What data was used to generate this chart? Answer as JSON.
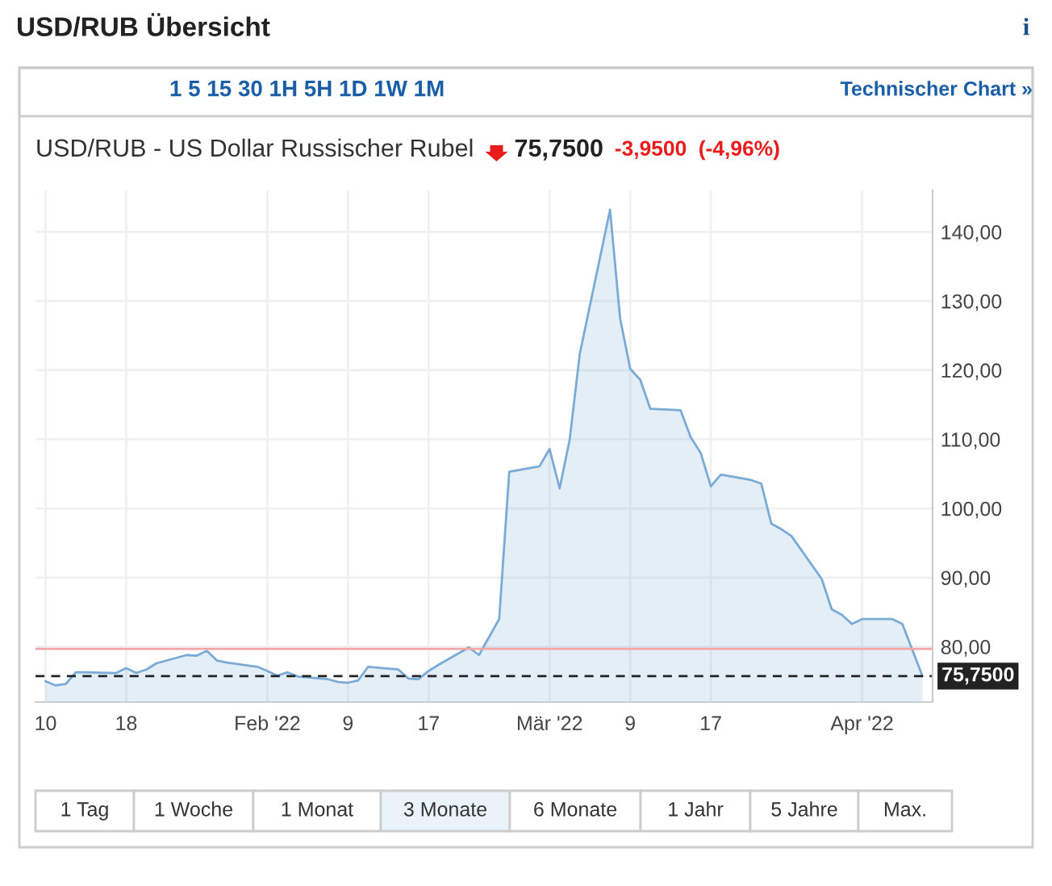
{
  "chart_data": {
    "type": "area",
    "title": "USD/RUB Übersicht",
    "subtitle": "USD/RUB - US Dollar Russischer Rubel",
    "annotations": [
      "i",
      "1 5 15 30 1H 5H 1D 1W 1M",
      "Technischer Chart »",
      "75,7500",
      "-3,9500",
      "(-4,96%)",
      "1 Tag",
      "1 Woche",
      "1 Monat",
      "3 Monate",
      "6 Monate",
      "1 Jahr",
      "5 Jahre",
      "Max."
    ],
    "x": [
      "2022-01-10",
      "2022-01-11",
      "2022-01-12",
      "2022-01-13",
      "2022-01-14",
      "2022-01-17",
      "2022-01-18",
      "2022-01-19",
      "2022-01-20",
      "2022-01-21",
      "2022-01-24",
      "2022-01-25",
      "2022-01-26",
      "2022-01-27",
      "2022-01-28",
      "2022-01-31",
      "2022-02-01",
      "2022-02-02",
      "2022-02-03",
      "2022-02-04",
      "2022-02-07",
      "2022-02-08",
      "2022-02-09",
      "2022-02-10",
      "2022-02-11",
      "2022-02-14",
      "2022-02-15",
      "2022-02-16",
      "2022-02-17",
      "2022-02-18",
      "2022-02-21",
      "2022-02-22",
      "2022-02-23",
      "2022-02-24",
      "2022-02-25",
      "2022-02-28",
      "2022-03-01",
      "2022-03-02",
      "2022-03-03",
      "2022-03-04",
      "2022-03-07",
      "2022-03-08",
      "2022-03-09",
      "2022-03-10",
      "2022-03-11",
      "2022-03-14",
      "2022-03-15",
      "2022-03-16",
      "2022-03-17",
      "2022-03-18",
      "2022-03-21",
      "2022-03-22",
      "2022-03-23",
      "2022-03-24",
      "2022-03-25",
      "2022-03-28",
      "2022-03-29",
      "2022-03-30",
      "2022-03-31",
      "2022-04-01",
      "2022-04-04",
      "2022-04-05",
      "2022-04-06",
      "2022-04-07"
    ],
    "series": [
      {
        "color": "#7aaad6",
        "values": [
          75.0,
          74.4,
          74.6,
          76.3,
          76.3,
          76.2,
          76.9,
          76.2,
          76.7,
          77.6,
          78.8,
          78.7,
          79.4,
          78.0,
          77.7,
          77.1,
          76.5,
          75.8,
          76.3,
          75.7,
          75.3,
          74.9,
          74.8,
          75.1,
          77.1,
          76.7,
          75.4,
          75.3,
          76.5,
          77.4,
          79.9,
          78.8,
          81.4,
          84.0,
          105.3,
          106.1,
          108.6,
          102.9,
          110.0,
          122.4,
          143.2,
          127.5,
          120.2,
          118.6,
          114.4,
          114.2,
          110.3,
          108.0,
          103.2,
          104.9,
          104.1,
          103.6,
          97.8,
          97.0,
          96.0,
          89.8,
          85.4,
          84.6,
          83.3,
          84.0,
          84.0,
          83.3,
          79.5,
          75.75
        ]
      }
    ],
    "xlim": [
      "2022-01-09",
      "2022-04-08"
    ],
    "xticks": [
      {
        "value": "2022-01-10",
        "label": "10"
      },
      {
        "value": "2022-01-18",
        "label": "18"
      },
      {
        "value": "2022-02-01",
        "label": "Feb '22"
      },
      {
        "value": "2022-02-09",
        "label": "9"
      },
      {
        "value": "2022-02-17",
        "label": "17"
      },
      {
        "value": "2022-03-01",
        "label": "Mär '22"
      },
      {
        "value": "2022-03-09",
        "label": "9"
      },
      {
        "value": "2022-03-17",
        "label": "17"
      },
      {
        "value": "2022-04-01",
        "label": "Apr '22"
      }
    ],
    "ylim": [
      72,
      146
    ],
    "yticks": [
      {
        "value": 80,
        "label": "80,00"
      },
      {
        "value": 90,
        "label": "90,00"
      },
      {
        "value": 100,
        "label": "100,00"
      },
      {
        "value": 110,
        "label": "110,00"
      },
      {
        "value": 120,
        "label": "120,00"
      },
      {
        "value": 130,
        "label": "130,00"
      },
      {
        "value": 140,
        "label": "140,00"
      }
    ],
    "ref_lines": [
      {
        "axis": "y",
        "value": 79.7,
        "color": "#f4a6a6",
        "line_style": "solid"
      },
      {
        "axis": "y",
        "value": 75.75,
        "label": "75,7500",
        "color": "#222222",
        "line_style": "dashed"
      }
    ],
    "grid": true,
    "legend": false
  }
}
